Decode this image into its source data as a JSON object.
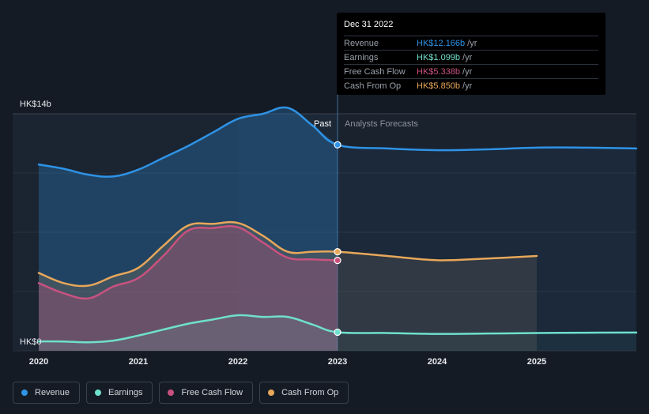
{
  "colors": {
    "revenue": "#2e93e6",
    "earnings": "#6fe0cc",
    "free_cash_flow": "#c9517f",
    "cash_from_op": "#e8a75a",
    "background": "#151b24",
    "past_shade": "#1b2431",
    "forecast_shade": "#1a222e"
  },
  "tooltip": {
    "date": "Dec 31 2022",
    "rows": [
      {
        "label": "Revenue",
        "value": "HK$12.166b",
        "unit": "/yr"
      },
      {
        "label": "Earnings",
        "value": "HK$1.099b",
        "unit": "/yr"
      },
      {
        "label": "Free Cash Flow",
        "value": "HK$5.338b",
        "unit": "/yr"
      },
      {
        "label": "Cash From Op",
        "value": "HK$5.850b",
        "unit": "/yr"
      }
    ]
  },
  "legend": [
    {
      "label": "Revenue"
    },
    {
      "label": "Earnings"
    },
    {
      "label": "Free Cash Flow"
    },
    {
      "label": "Cash From Op"
    }
  ],
  "chart_data": {
    "type": "line",
    "ylim": [
      0,
      14
    ],
    "y_tick_labels": {
      "top": "HK$14b",
      "bottom": "HK$0"
    },
    "x_ticks": [
      "2020",
      "2021",
      "2022",
      "2023",
      "2024",
      "2025"
    ],
    "xlim": [
      2020,
      2026
    ],
    "past_label": "Past",
    "forecast_label": "Analysts Forecasts",
    "divider_x": 2023,
    "highlight_x": 2023,
    "series": [
      {
        "name": "Revenue",
        "key": "revenue",
        "x": [
          2020,
          2020.25,
          2020.5,
          2020.75,
          2021,
          2021.25,
          2021.5,
          2021.75,
          2022,
          2022.25,
          2022.5,
          2022.75,
          2023,
          2023.5,
          2024,
          2024.5,
          2025,
          2025.5,
          2026
        ],
        "values": [
          11.0,
          10.75,
          10.4,
          10.3,
          10.7,
          11.4,
          12.1,
          12.9,
          13.7,
          14.0,
          14.35,
          13.3,
          12.166,
          11.95,
          11.85,
          11.9,
          12.0,
          12.0,
          11.95
        ]
      },
      {
        "name": "Earnings",
        "key": "earnings",
        "x": [
          2020,
          2020.25,
          2020.5,
          2020.75,
          2021,
          2021.25,
          2021.5,
          2021.75,
          2022,
          2022.25,
          2022.5,
          2022.75,
          2023,
          2023.5,
          2024,
          2024.5,
          2025,
          2025.5,
          2026
        ],
        "values": [
          0.55,
          0.55,
          0.5,
          0.6,
          0.9,
          1.25,
          1.6,
          1.85,
          2.1,
          2.0,
          2.0,
          1.55,
          1.099,
          1.05,
          1.0,
          1.02,
          1.05,
          1.07,
          1.08
        ]
      },
      {
        "name": "Free Cash Flow",
        "key": "free_cash_flow",
        "x": [
          2020,
          2020.25,
          2020.5,
          2020.75,
          2021,
          2021.25,
          2021.5,
          2021.75,
          2022,
          2022.25,
          2022.5,
          2022.75,
          2023
        ],
        "values": [
          4.0,
          3.4,
          3.1,
          3.8,
          4.3,
          5.6,
          7.1,
          7.25,
          7.3,
          6.4,
          5.5,
          5.4,
          5.338
        ]
      },
      {
        "name": "Cash From Op",
        "key": "cash_from_op",
        "x": [
          2020,
          2020.25,
          2020.5,
          2020.75,
          2021,
          2021.25,
          2021.5,
          2021.75,
          2022,
          2022.25,
          2022.5,
          2022.75,
          2023,
          2023.5,
          2024,
          2024.5,
          2025
        ],
        "values": [
          4.6,
          4.0,
          3.85,
          4.4,
          4.9,
          6.2,
          7.4,
          7.5,
          7.55,
          6.8,
          5.85,
          5.85,
          5.85,
          5.6,
          5.35,
          5.45,
          5.6
        ]
      }
    ]
  }
}
